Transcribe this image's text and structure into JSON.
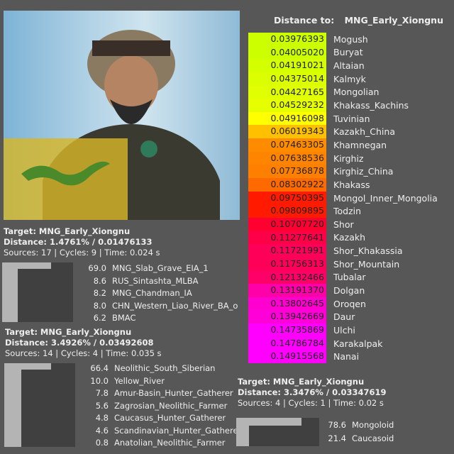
{
  "image": {
    "description_icon": "warrior-portrait",
    "flag_icon": "dragon-flag"
  },
  "results": [
    {
      "target": "Target: MNG_Early_Xiongnu",
      "distance": "Distance: 1.4761% / 0.01476133",
      "meta": "Sources: 17 | Cycles: 9 | Time: 0.024 s",
      "sources": [
        {
          "value": "69.0",
          "name": "MNG_Slab_Grave_EIA_1"
        },
        {
          "value": "8.6",
          "name": "RUS_Sintashta_MLBA"
        },
        {
          "value": "8.2",
          "name": "MNG_Chandman_IA"
        },
        {
          "value": "8.0",
          "name": "CHN_Western_Liao_River_BA_o"
        },
        {
          "value": "6.2",
          "name": "BMAC"
        }
      ]
    },
    {
      "target": "Target: MNG_Early_Xiongnu",
      "distance": "Distance: 3.4926% / 0.03492608",
      "meta": "Sources: 14 | Cycles: 4 | Time: 0.035 s",
      "sources": [
        {
          "value": "66.4",
          "name": "Neolithic_South_Siberian"
        },
        {
          "value": "10.0",
          "name": "Yellow_River"
        },
        {
          "value": "7.8",
          "name": "Amur-Basin_Hunter_Gatherer"
        },
        {
          "value": "5.6",
          "name": "Zagrosian_Neolithic_Farmer"
        },
        {
          "value": "4.8",
          "name": "Caucasus_Hunter_Gatherer"
        },
        {
          "value": "4.6",
          "name": "Scandinavian_Hunter_Gatherer"
        },
        {
          "value": "0.8",
          "name": "Anatolian_Neolithic_Farmer"
        }
      ]
    },
    {
      "target": "Target: MNG_Early_Xiongnu",
      "distance": "Distance: 3.3476% / 0.03347619",
      "meta": "Sources: 4 | Cycles: 1 | Time: 0.02 s",
      "sources": [
        {
          "value": "78.6",
          "name": "Mongoloid"
        },
        {
          "value": "21.4",
          "name": "Caucasoid"
        }
      ]
    }
  ],
  "distances": {
    "label": "Distance to:",
    "target": "MNG_Early_Xiongnu",
    "rows": [
      {
        "value": "0.03976393",
        "name": "Mogush",
        "color": "#ccff00"
      },
      {
        "value": "0.04005020",
        "name": "Buryat",
        "color": "#ccff00"
      },
      {
        "value": "0.04191021",
        "name": "Altaian",
        "color": "#d4ff00"
      },
      {
        "value": "0.04375014",
        "name": "Kalmyk",
        "color": "#dcff00"
      },
      {
        "value": "0.04427165",
        "name": "Mongolian",
        "color": "#e0ff00"
      },
      {
        "value": "0.04529232",
        "name": "Khakass_Kachins",
        "color": "#e6ff00"
      },
      {
        "value": "0.04916098",
        "name": "Tuvinian",
        "color": "#ffff00"
      },
      {
        "value": "0.06019343",
        "name": "Kazakh_China",
        "color": "#ffc000"
      },
      {
        "value": "0.07463305",
        "name": "Khamnegan",
        "color": "#ff8c00"
      },
      {
        "value": "0.07638536",
        "name": "Kirghiz",
        "color": "#ff8400"
      },
      {
        "value": "0.07736878",
        "name": "Kirghiz_China",
        "color": "#ff8000"
      },
      {
        "value": "0.08302922",
        "name": "Khakass",
        "color": "#ff6a00"
      },
      {
        "value": "0.09750395",
        "name": "Mongol_Inner_Mongolia",
        "color": "#ff1a00"
      },
      {
        "value": "0.09809895",
        "name": "Todzin",
        "color": "#ff1a00"
      },
      {
        "value": "0.10707720",
        "name": "Shor",
        "color": "#ff0030"
      },
      {
        "value": "0.11277641",
        "name": "Kazakh",
        "color": "#ff0048"
      },
      {
        "value": "0.11721991",
        "name": "Shor_Khakassia",
        "color": "#ff0058"
      },
      {
        "value": "0.11756313",
        "name": "Shor_Mountain",
        "color": "#ff0058"
      },
      {
        "value": "0.12132466",
        "name": "Tubalar",
        "color": "#ff0068"
      },
      {
        "value": "0.13191370",
        "name": "Dolgan",
        "color": "#ff00a8"
      },
      {
        "value": "0.13802645",
        "name": "Oroqen",
        "color": "#ff00d0"
      },
      {
        "value": "0.13942669",
        "name": "Daur",
        "color": "#ff00d8"
      },
      {
        "value": "0.14735869",
        "name": "Ulchi",
        "color": "#ff00ff"
      },
      {
        "value": "0.14786784",
        "name": "Karakalpak",
        "color": "#ff00ff"
      },
      {
        "value": "0.14915568",
        "name": "Nanai",
        "color": "#ff00ff"
      }
    ]
  }
}
